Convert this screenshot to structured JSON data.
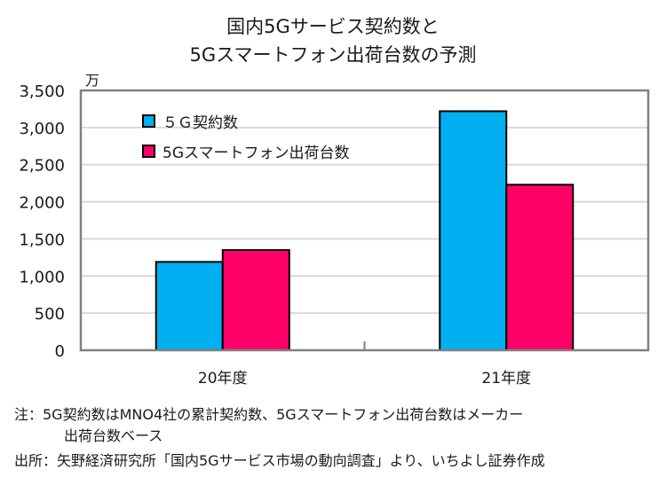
{
  "chart_data": {
    "type": "bar",
    "title": "国内5Gサービス契約数と\n5Gスマートフォン出荷台数の予測",
    "title_lines": [
      "国内5Gサービス契約数と",
      "5Gスマートフォン出荷台数の予測"
    ],
    "unit_label": "万",
    "xlabel": "",
    "ylabel": "",
    "categories": [
      "20年度",
      "21年度"
    ],
    "series": [
      {
        "name": "5G契約数",
        "legend_label": "５Ｇ契約数",
        "color": "#00B0F0",
        "values": [
          1190,
          3220
        ]
      },
      {
        "name": "5Gスマートフォン出荷台数",
        "legend_label": "5Gスマートフォン出荷台数",
        "color": "#FF0066",
        "values": [
          1350,
          2230
        ]
      }
    ],
    "ylim": [
      0,
      3500
    ],
    "yticks": [
      0,
      500,
      1000,
      1500,
      2000,
      2500,
      3000,
      3500
    ],
    "ytick_labels": [
      "0",
      "500",
      "1,000",
      "1,500",
      "2,000",
      "2,500",
      "3,000",
      "3,500"
    ],
    "grid": true,
    "legend_position": "top-left"
  },
  "notes": {
    "note_line1": "注：5G契約数はMNO4社の累計契約数、5Gスマートフォン出荷台数はメーカー",
    "note_line2": "出荷台数ベース",
    "source": "出所：矢野経済研究所「国内5Gサービス市場の動向調査」より、いちよし証券作成"
  }
}
